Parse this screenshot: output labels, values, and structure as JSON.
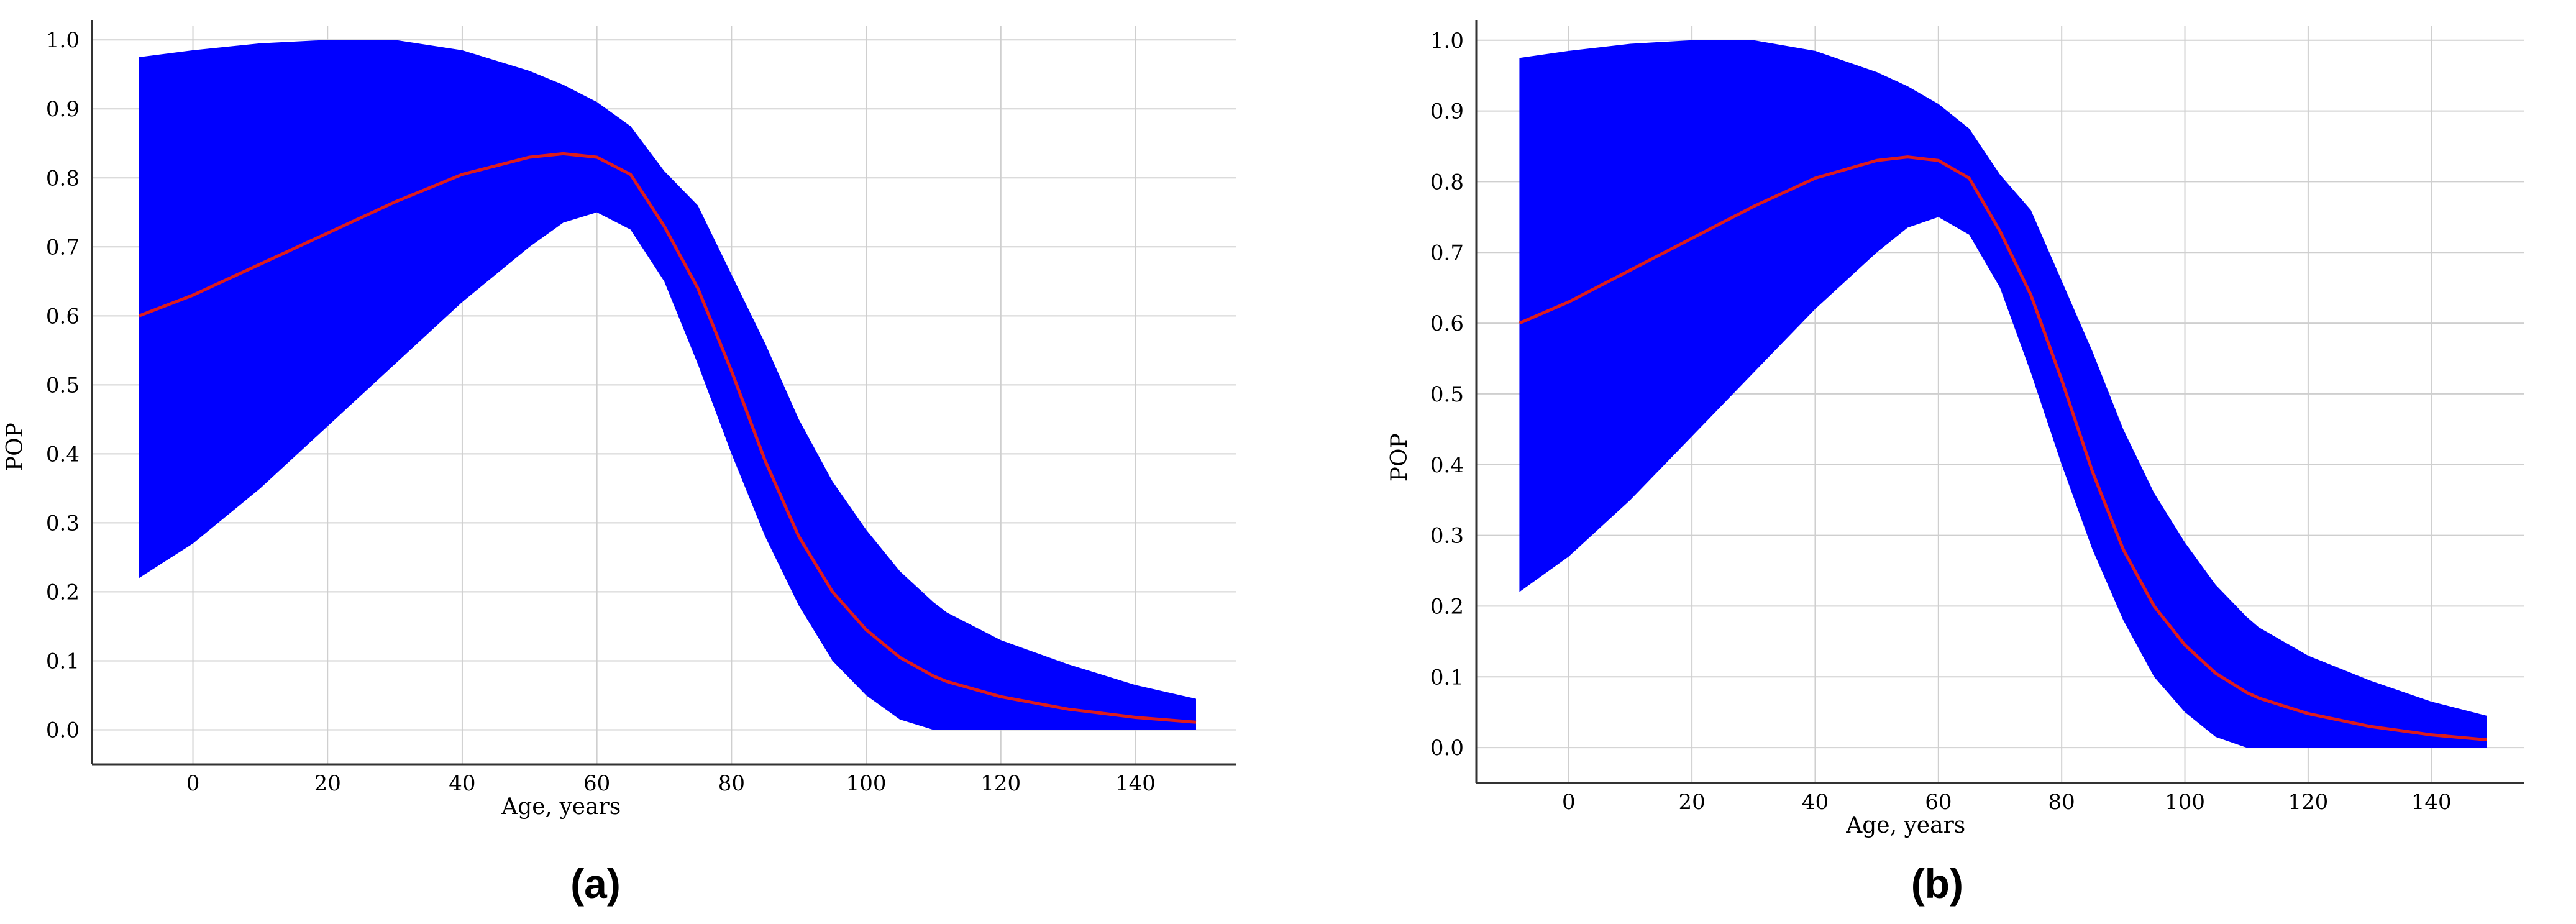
{
  "chart_data": [
    {
      "type": "area",
      "panel_label": "(a)",
      "xlabel": "Age, years",
      "ylabel": "POP",
      "xlim": [
        -15,
        155
      ],
      "ylim": [
        -0.05,
        1.02
      ],
      "xticks": [
        0,
        20,
        40,
        60,
        80,
        100,
        120,
        140
      ],
      "yticks": [
        0.0,
        0.1,
        0.2,
        0.3,
        0.4,
        0.5,
        0.6,
        0.7,
        0.8,
        0.9,
        1.0
      ],
      "grid": true,
      "band_color": "#0000ff",
      "line_color": "#dd1c1c",
      "x": [
        -8,
        0,
        10,
        20,
        30,
        40,
        50,
        55,
        60,
        65,
        70,
        75,
        80,
        85,
        90,
        95,
        100,
        105,
        110,
        112,
        120,
        130,
        140,
        149
      ],
      "series": [
        {
          "role": "center",
          "values": [
            0.6,
            0.63,
            0.675,
            0.72,
            0.765,
            0.805,
            0.83,
            0.835,
            0.83,
            0.805,
            0.73,
            0.64,
            0.52,
            0.39,
            0.28,
            0.2,
            0.145,
            0.105,
            0.078,
            0.07,
            0.048,
            0.03,
            0.018,
            0.011
          ]
        },
        {
          "role": "upper",
          "values": [
            0.975,
            0.985,
            0.995,
            1.0,
            1.0,
            0.985,
            0.955,
            0.935,
            0.91,
            0.875,
            0.81,
            0.76,
            0.66,
            0.56,
            0.45,
            0.36,
            0.29,
            0.23,
            0.185,
            0.17,
            0.13,
            0.095,
            0.065,
            0.045
          ]
        },
        {
          "role": "lower",
          "values": [
            0.22,
            0.27,
            0.35,
            0.44,
            0.53,
            0.62,
            0.7,
            0.735,
            0.75,
            0.725,
            0.65,
            0.53,
            0.4,
            0.28,
            0.18,
            0.1,
            0.05,
            0.015,
            0.0,
            0.0,
            0.0,
            0.0,
            0.0,
            0.0
          ]
        }
      ]
    },
    {
      "type": "area",
      "panel_label": "(b)",
      "xlabel": "Age, years",
      "ylabel": "POP",
      "xlim": [
        -15,
        155
      ],
      "ylim": [
        -0.05,
        1.02
      ],
      "xticks": [
        0,
        20,
        40,
        60,
        80,
        100,
        120,
        140
      ],
      "yticks": [
        0.0,
        0.1,
        0.2,
        0.3,
        0.4,
        0.5,
        0.6,
        0.7,
        0.8,
        0.9,
        1.0
      ],
      "grid": true,
      "band_color": "#0000ff",
      "line_color": "#dd1c1c",
      "x": [
        -8,
        0,
        10,
        20,
        30,
        40,
        50,
        55,
        60,
        65,
        70,
        75,
        80,
        85,
        90,
        95,
        100,
        105,
        110,
        112,
        120,
        130,
        140,
        149
      ],
      "series": [
        {
          "role": "center",
          "values": [
            0.6,
            0.63,
            0.675,
            0.72,
            0.765,
            0.805,
            0.83,
            0.835,
            0.83,
            0.805,
            0.73,
            0.64,
            0.52,
            0.39,
            0.28,
            0.2,
            0.145,
            0.105,
            0.078,
            0.07,
            0.048,
            0.03,
            0.018,
            0.011
          ]
        },
        {
          "role": "upper",
          "values": [
            0.975,
            0.985,
            0.995,
            1.0,
            1.0,
            0.985,
            0.955,
            0.935,
            0.91,
            0.875,
            0.81,
            0.76,
            0.66,
            0.56,
            0.45,
            0.36,
            0.29,
            0.23,
            0.185,
            0.17,
            0.13,
            0.095,
            0.065,
            0.045
          ]
        },
        {
          "role": "lower",
          "values": [
            0.22,
            0.27,
            0.35,
            0.44,
            0.53,
            0.62,
            0.7,
            0.735,
            0.75,
            0.725,
            0.65,
            0.53,
            0.4,
            0.28,
            0.18,
            0.1,
            0.05,
            0.015,
            0.0,
            0.0,
            0.0,
            0.0,
            0.0,
            0.0
          ]
        }
      ]
    }
  ]
}
